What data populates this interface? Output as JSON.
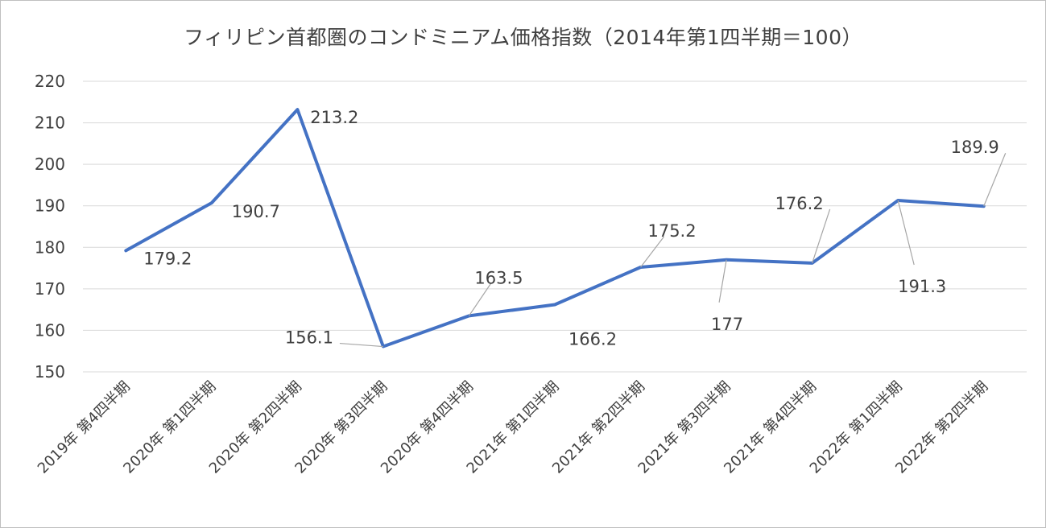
{
  "chart_data": {
    "type": "line",
    "title": "フィリピン首都圏のコンドミニアム価格指数（2014年第1四半期＝100）",
    "categories": [
      "2019年 第4四半期",
      "2020年 第1四半期",
      "2020年 第2四半期",
      "2020年 第3四半期",
      "2020年 第4四半期",
      "2021年 第1四半期",
      "2021年 第2四半期",
      "2021年 第3四半期",
      "2021年 第4四半期",
      "2022年 第1四半期",
      "2022年 第2四半期"
    ],
    "series": [
      {
        "values": [
          179.2,
          190.7,
          213.2,
          156.1,
          163.5,
          166.2,
          175.2,
          177,
          176.2,
          191.3,
          189.9
        ],
        "data_labels": [
          "179.2",
          "190.7",
          "213.2",
          "156.1",
          "163.5",
          "166.2",
          "175.2",
          "177",
          "176.2",
          "191.3",
          "189.9"
        ]
      }
    ],
    "ylim": [
      150,
      220
    ],
    "yticks": [
      150,
      160,
      170,
      180,
      190,
      200,
      210,
      220
    ],
    "grid": true,
    "legend": "none",
    "colors": {
      "line": "#4472c4",
      "grid": "#d9d9d9",
      "text": "#404040",
      "leader": "#a6a6a6"
    }
  }
}
